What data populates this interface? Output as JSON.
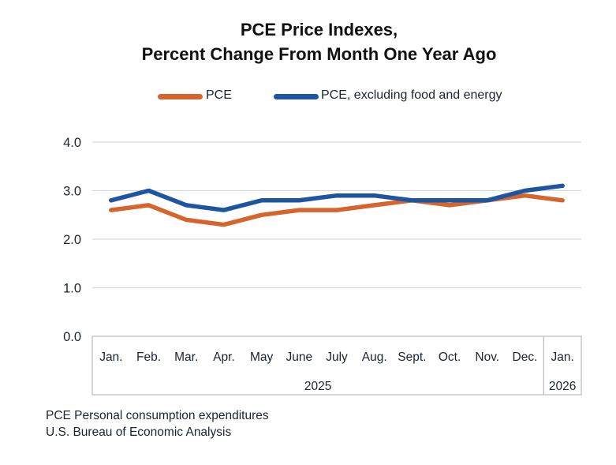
{
  "title": {
    "line1": "PCE Price Indexes,",
    "line2": "Percent Change From Month One Year Ago"
  },
  "legend": [
    {
      "label": "PCE",
      "color": "#d5652c"
    },
    {
      "label": "PCE, excluding food and energy",
      "color": "#1e55a0"
    }
  ],
  "chart_data": {
    "type": "line",
    "categories": [
      "Jan.",
      "Feb.",
      "Mar.",
      "Apr.",
      "May",
      "June",
      "July",
      "Aug.",
      "Sept.",
      "Oct.",
      "Nov.",
      "Dec.",
      "Jan."
    ],
    "year_groups": [
      {
        "label": "2025",
        "span": 12
      },
      {
        "label": "2026",
        "span": 1
      }
    ],
    "series": [
      {
        "name": "PCE",
        "color": "#d5652c",
        "values": [
          2.6,
          2.7,
          2.4,
          2.3,
          2.5,
          2.6,
          2.6,
          2.7,
          2.8,
          2.7,
          2.8,
          2.9,
          2.8
        ]
      },
      {
        "name": "PCE, excluding food and energy",
        "color": "#1e55a0",
        "values": [
          2.8,
          3.0,
          2.7,
          2.6,
          2.8,
          2.8,
          2.9,
          2.9,
          2.8,
          2.8,
          2.8,
          3.0,
          3.1
        ]
      }
    ],
    "title": "PCE Price Indexes, Percent Change From Month One Year Ago",
    "xlabel": "",
    "ylabel": "",
    "ylim": [
      0.0,
      4.0
    ],
    "yticks": [
      "0.0",
      "1.0",
      "2.0",
      "3.0",
      "4.0"
    ],
    "grid": true,
    "legend_position": "top"
  },
  "footer": {
    "line1": "PCE Personal consumption expenditures",
    "line2": "U.S. Bureau of Economic Analysis"
  },
  "colors": {
    "grid": "#d9d9d9",
    "axis_box": "#bfbfbf",
    "axis_text": "#1b2430",
    "title_text": "#111111"
  }
}
